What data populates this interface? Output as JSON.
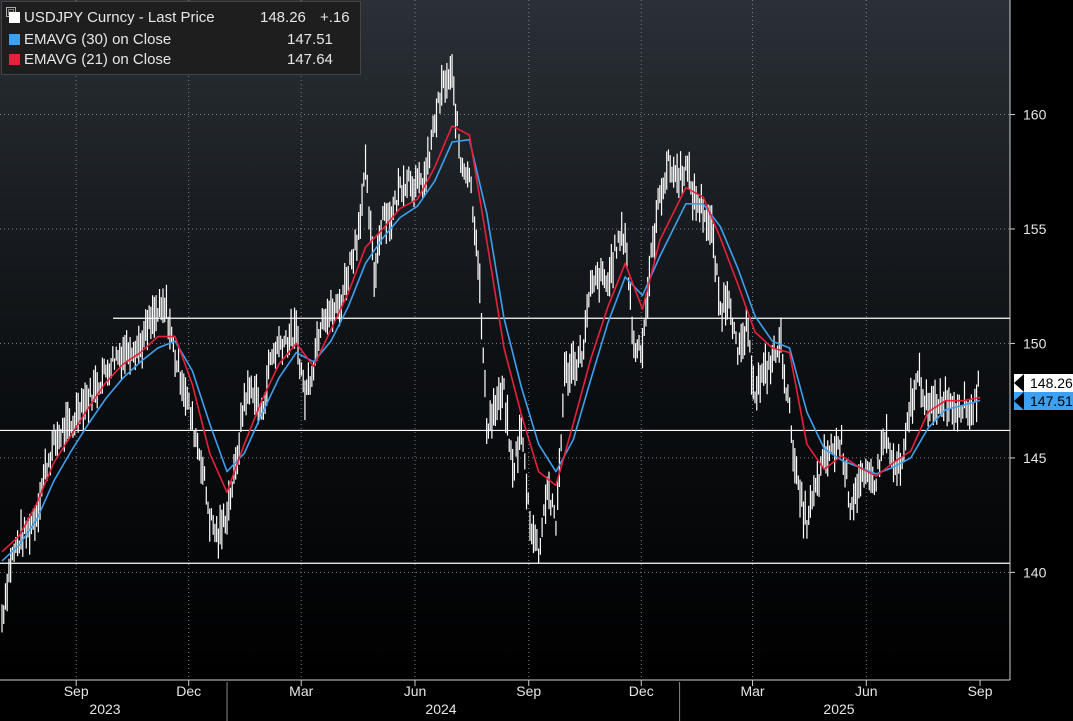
{
  "colors": {
    "background": "#000000",
    "price": "#ffffff",
    "ema30": "#3ea0f0",
    "ema21": "#e8203c",
    "reference_line": "#ffffff",
    "axis_text": "#e6e6e6"
  },
  "legend": {
    "collapse_glyph": "⊟",
    "price_label": "USDJPY Curncy - Last Price",
    "price_value": "148.26",
    "price_change": "+.16",
    "ema30_label": "EMAVG (30)  on Close",
    "ema30_value": "147.51",
    "ema21_label": "EMAVG (21)  on Close",
    "ema21_value": "147.64"
  },
  "tags": {
    "price": "148.26",
    "ema": "147.51"
  },
  "chart_data": {
    "type": "line",
    "y_axis": {
      "min": 135.3,
      "max": 165,
      "ticks": [
        140,
        145,
        150,
        155,
        160
      ],
      "position": "right"
    },
    "x_axis": {
      "month_ticks": [
        "Sep",
        "Dec",
        "Mar",
        "Jun",
        "Sep",
        "Dec",
        "Mar",
        "Jun",
        "Sep"
      ],
      "years": [
        "2023",
        "2024",
        "2025"
      ]
    },
    "reference_lines": [
      151.1,
      146.2,
      140.4
    ],
    "series": [
      {
        "name": "USDJPY Curncy - Last Price",
        "style": "bar",
        "points": [
          [
            "2023-07-03",
            138.0
          ],
          [
            "2023-07-10",
            140.5
          ],
          [
            "2023-07-17",
            141.4
          ],
          [
            "2023-07-24",
            141.8
          ],
          [
            "2023-07-31",
            142.6
          ],
          [
            "2023-08-07",
            144.5
          ],
          [
            "2023-08-14",
            145.6
          ],
          [
            "2023-08-21",
            146.2
          ],
          [
            "2023-08-28",
            146.3
          ],
          [
            "2023-09-04",
            147.4
          ],
          [
            "2023-09-11",
            147.6
          ],
          [
            "2023-09-18",
            148.2
          ],
          [
            "2023-09-25",
            148.8
          ],
          [
            "2023-10-02",
            149.4
          ],
          [
            "2023-10-09",
            149.6
          ],
          [
            "2023-10-16",
            149.9
          ],
          [
            "2023-10-23",
            149.9
          ],
          [
            "2023-10-30",
            150.8
          ],
          [
            "2023-11-06",
            151.3
          ],
          [
            "2023-11-13",
            151.5
          ],
          [
            "2023-11-20",
            149.4
          ],
          [
            "2023-11-27",
            148.2
          ],
          [
            "2023-12-04",
            146.5
          ],
          [
            "2023-12-11",
            145.0
          ],
          [
            "2023-12-18",
            142.4
          ],
          [
            "2023-12-25",
            141.5
          ],
          [
            "2024-01-01",
            142.7
          ],
          [
            "2024-01-08",
            144.5
          ],
          [
            "2024-01-15",
            147.6
          ],
          [
            "2024-01-22",
            148.1
          ],
          [
            "2024-01-29",
            146.8
          ],
          [
            "2024-02-05",
            149.3
          ],
          [
            "2024-02-12",
            150.0
          ],
          [
            "2024-02-19",
            150.2
          ],
          [
            "2024-02-26",
            150.4
          ],
          [
            "2024-03-04",
            147.7
          ],
          [
            "2024-03-11",
            149.2
          ],
          [
            "2024-03-18",
            151.4
          ],
          [
            "2024-03-25",
            151.3
          ],
          [
            "2024-04-01",
            151.6
          ],
          [
            "2024-04-08",
            153.2
          ],
          [
            "2024-04-15",
            154.6
          ],
          [
            "2024-04-22",
            157.5
          ],
          [
            "2024-04-29",
            152.9
          ],
          [
            "2024-05-06",
            155.8
          ],
          [
            "2024-05-13",
            155.5
          ],
          [
            "2024-05-20",
            156.9
          ],
          [
            "2024-05-27",
            157.3
          ],
          [
            "2024-06-03",
            156.8
          ],
          [
            "2024-06-10",
            157.3
          ],
          [
            "2024-06-17",
            159.7
          ],
          [
            "2024-06-24",
            161.3
          ],
          [
            "2024-07-01",
            161.6
          ],
          [
            "2024-07-08",
            157.9
          ],
          [
            "2024-07-15",
            157.5
          ],
          [
            "2024-07-22",
            153.8
          ],
          [
            "2024-07-29",
            146.4
          ],
          [
            "2024-08-05",
            147.2
          ],
          [
            "2024-08-12",
            147.8
          ],
          [
            "2024-08-19",
            144.4
          ],
          [
            "2024-08-26",
            146.2
          ],
          [
            "2024-09-02",
            142.3
          ],
          [
            "2024-09-09",
            140.9
          ],
          [
            "2024-09-16",
            143.8
          ],
          [
            "2024-09-23",
            142.0
          ],
          [
            "2024-09-30",
            148.6
          ],
          [
            "2024-10-07",
            149.1
          ],
          [
            "2024-10-14",
            149.5
          ],
          [
            "2024-10-21",
            152.3
          ],
          [
            "2024-10-28",
            152.9
          ],
          [
            "2024-11-04",
            152.6
          ],
          [
            "2024-11-11",
            154.3
          ],
          [
            "2024-11-18",
            154.8
          ],
          [
            "2024-11-25",
            149.8
          ],
          [
            "2024-12-02",
            150.0
          ],
          [
            "2024-12-09",
            153.7
          ],
          [
            "2024-12-16",
            156.5
          ],
          [
            "2024-12-23",
            157.8
          ],
          [
            "2024-12-30",
            157.3
          ],
          [
            "2025-01-06",
            157.7
          ],
          [
            "2025-01-13",
            156.3
          ],
          [
            "2025-01-20",
            155.9
          ],
          [
            "2025-01-27",
            154.9
          ],
          [
            "2025-02-03",
            151.4
          ],
          [
            "2025-02-10",
            152.3
          ],
          [
            "2025-02-17",
            149.3
          ],
          [
            "2025-02-24",
            150.6
          ],
          [
            "2025-03-03",
            148.0
          ],
          [
            "2025-03-10",
            148.6
          ],
          [
            "2025-03-17",
            149.3
          ],
          [
            "2025-03-24",
            150.0
          ],
          [
            "2025-03-31",
            146.9
          ],
          [
            "2025-04-07",
            143.5
          ],
          [
            "2025-04-14",
            142.2
          ],
          [
            "2025-04-21",
            143.6
          ],
          [
            "2025-04-28",
            144.9
          ],
          [
            "2025-05-05",
            145.4
          ],
          [
            "2025-05-12",
            145.7
          ],
          [
            "2025-05-19",
            143.0
          ],
          [
            "2025-05-26",
            143.9
          ],
          [
            "2025-06-02",
            144.0
          ],
          [
            "2025-06-09",
            144.1
          ],
          [
            "2025-06-16",
            146.1
          ],
          [
            "2025-06-23",
            144.6
          ],
          [
            "2025-06-30",
            144.5
          ],
          [
            "2025-07-07",
            147.4
          ],
          [
            "2025-07-14",
            148.6
          ],
          [
            "2025-07-21",
            147.0
          ],
          [
            "2025-07-28",
            147.4
          ],
          [
            "2025-08-04",
            147.7
          ],
          [
            "2025-08-11",
            147.2
          ],
          [
            "2025-08-18",
            147.4
          ],
          [
            "2025-08-25",
            147.0
          ],
          [
            "2025-09-01",
            148.3
          ]
        ]
      },
      {
        "name": "EMAVG (30) on Close",
        "points": [
          [
            "2023-07-03",
            140.5
          ],
          [
            "2023-07-17",
            141.2
          ],
          [
            "2023-07-31",
            142.3
          ],
          [
            "2023-08-14",
            144.0
          ],
          [
            "2023-08-28",
            145.3
          ],
          [
            "2023-09-11",
            146.5
          ],
          [
            "2023-09-25",
            147.6
          ],
          [
            "2023-10-09",
            148.5
          ],
          [
            "2023-10-23",
            149.2
          ],
          [
            "2023-11-06",
            149.8
          ],
          [
            "2023-11-20",
            150.1
          ],
          [
            "2023-12-04",
            148.8
          ],
          [
            "2023-12-18",
            146.5
          ],
          [
            "2024-01-01",
            144.4
          ],
          [
            "2024-01-15",
            145.2
          ],
          [
            "2024-01-29",
            146.9
          ],
          [
            "2024-02-12",
            148.5
          ],
          [
            "2024-02-26",
            149.6
          ],
          [
            "2024-03-11",
            149.2
          ],
          [
            "2024-03-25",
            150.1
          ],
          [
            "2024-04-08",
            151.6
          ],
          [
            "2024-04-22",
            153.5
          ],
          [
            "2024-05-06",
            154.6
          ],
          [
            "2024-05-20",
            155.5
          ],
          [
            "2024-06-03",
            156.0
          ],
          [
            "2024-06-17",
            157.1
          ],
          [
            "2024-07-01",
            158.8
          ],
          [
            "2024-07-15",
            158.9
          ],
          [
            "2024-07-29",
            155.7
          ],
          [
            "2024-08-12",
            151.1
          ],
          [
            "2024-08-26",
            148.1
          ],
          [
            "2024-09-09",
            145.6
          ],
          [
            "2024-09-23",
            144.4
          ],
          [
            "2024-10-07",
            145.8
          ],
          [
            "2024-10-21",
            148.4
          ],
          [
            "2024-11-04",
            150.9
          ],
          [
            "2024-11-18",
            152.9
          ],
          [
            "2024-12-02",
            152.1
          ],
          [
            "2024-12-16",
            153.8
          ],
          [
            "2025-01-06",
            156.1
          ],
          [
            "2025-01-20",
            156.1
          ],
          [
            "2025-02-03",
            155.1
          ],
          [
            "2025-02-17",
            153.3
          ],
          [
            "2025-03-03",
            151.2
          ],
          [
            "2025-03-17",
            150.1
          ],
          [
            "2025-03-31",
            149.8
          ],
          [
            "2025-04-14",
            147.0
          ],
          [
            "2025-04-28",
            145.4
          ],
          [
            "2025-05-12",
            144.9
          ],
          [
            "2025-05-26",
            144.6
          ],
          [
            "2025-06-09",
            144.3
          ],
          [
            "2025-06-23",
            144.6
          ],
          [
            "2025-07-07",
            145.0
          ],
          [
            "2025-07-21",
            146.3
          ],
          [
            "2025-08-04",
            147.1
          ],
          [
            "2025-08-18",
            147.3
          ],
          [
            "2025-09-01",
            147.51
          ]
        ]
      },
      {
        "name": "EMAVG (21) on Close",
        "points": [
          [
            "2023-07-03",
            140.9
          ],
          [
            "2023-07-17",
            141.6
          ],
          [
            "2023-07-31",
            143.0
          ],
          [
            "2023-08-14",
            144.8
          ],
          [
            "2023-08-28",
            146.0
          ],
          [
            "2023-09-11",
            147.2
          ],
          [
            "2023-09-25",
            148.3
          ],
          [
            "2023-10-09",
            149.1
          ],
          [
            "2023-10-23",
            149.6
          ],
          [
            "2023-11-06",
            150.3
          ],
          [
            "2023-11-20",
            150.3
          ],
          [
            "2023-12-04",
            148.2
          ],
          [
            "2023-12-18",
            145.2
          ],
          [
            "2024-01-01",
            143.5
          ],
          [
            "2024-01-15",
            145.6
          ],
          [
            "2024-01-29",
            147.5
          ],
          [
            "2024-02-12",
            149.1
          ],
          [
            "2024-02-26",
            150.0
          ],
          [
            "2024-03-11",
            149.0
          ],
          [
            "2024-03-25",
            150.6
          ],
          [
            "2024-04-08",
            152.2
          ],
          [
            "2024-04-22",
            154.2
          ],
          [
            "2024-05-06",
            155.0
          ],
          [
            "2024-05-20",
            155.9
          ],
          [
            "2024-06-03",
            156.3
          ],
          [
            "2024-06-17",
            157.7
          ],
          [
            "2024-07-01",
            159.5
          ],
          [
            "2024-07-15",
            159.1
          ],
          [
            "2024-07-29",
            154.5
          ],
          [
            "2024-08-12",
            149.8
          ],
          [
            "2024-08-26",
            146.9
          ],
          [
            "2024-09-09",
            144.4
          ],
          [
            "2024-09-23",
            143.8
          ],
          [
            "2024-10-07",
            146.5
          ],
          [
            "2024-10-21",
            149.3
          ],
          [
            "2024-11-04",
            151.6
          ],
          [
            "2024-11-18",
            153.5
          ],
          [
            "2024-12-02",
            151.5
          ],
          [
            "2024-12-16",
            154.5
          ],
          [
            "2025-01-06",
            156.8
          ],
          [
            "2025-01-20",
            156.4
          ],
          [
            "2025-02-03",
            154.6
          ],
          [
            "2025-02-17",
            152.6
          ],
          [
            "2025-03-03",
            150.5
          ],
          [
            "2025-03-17",
            149.8
          ],
          [
            "2025-03-31",
            149.6
          ],
          [
            "2025-04-14",
            145.6
          ],
          [
            "2025-04-28",
            144.5
          ],
          [
            "2025-05-12",
            145.1
          ],
          [
            "2025-05-26",
            144.6
          ],
          [
            "2025-06-09",
            144.2
          ],
          [
            "2025-06-23",
            144.8
          ],
          [
            "2025-07-07",
            145.3
          ],
          [
            "2025-07-21",
            147.0
          ],
          [
            "2025-08-04",
            147.5
          ],
          [
            "2025-08-18",
            147.5
          ],
          [
            "2025-09-01",
            147.64
          ]
        ]
      }
    ]
  }
}
